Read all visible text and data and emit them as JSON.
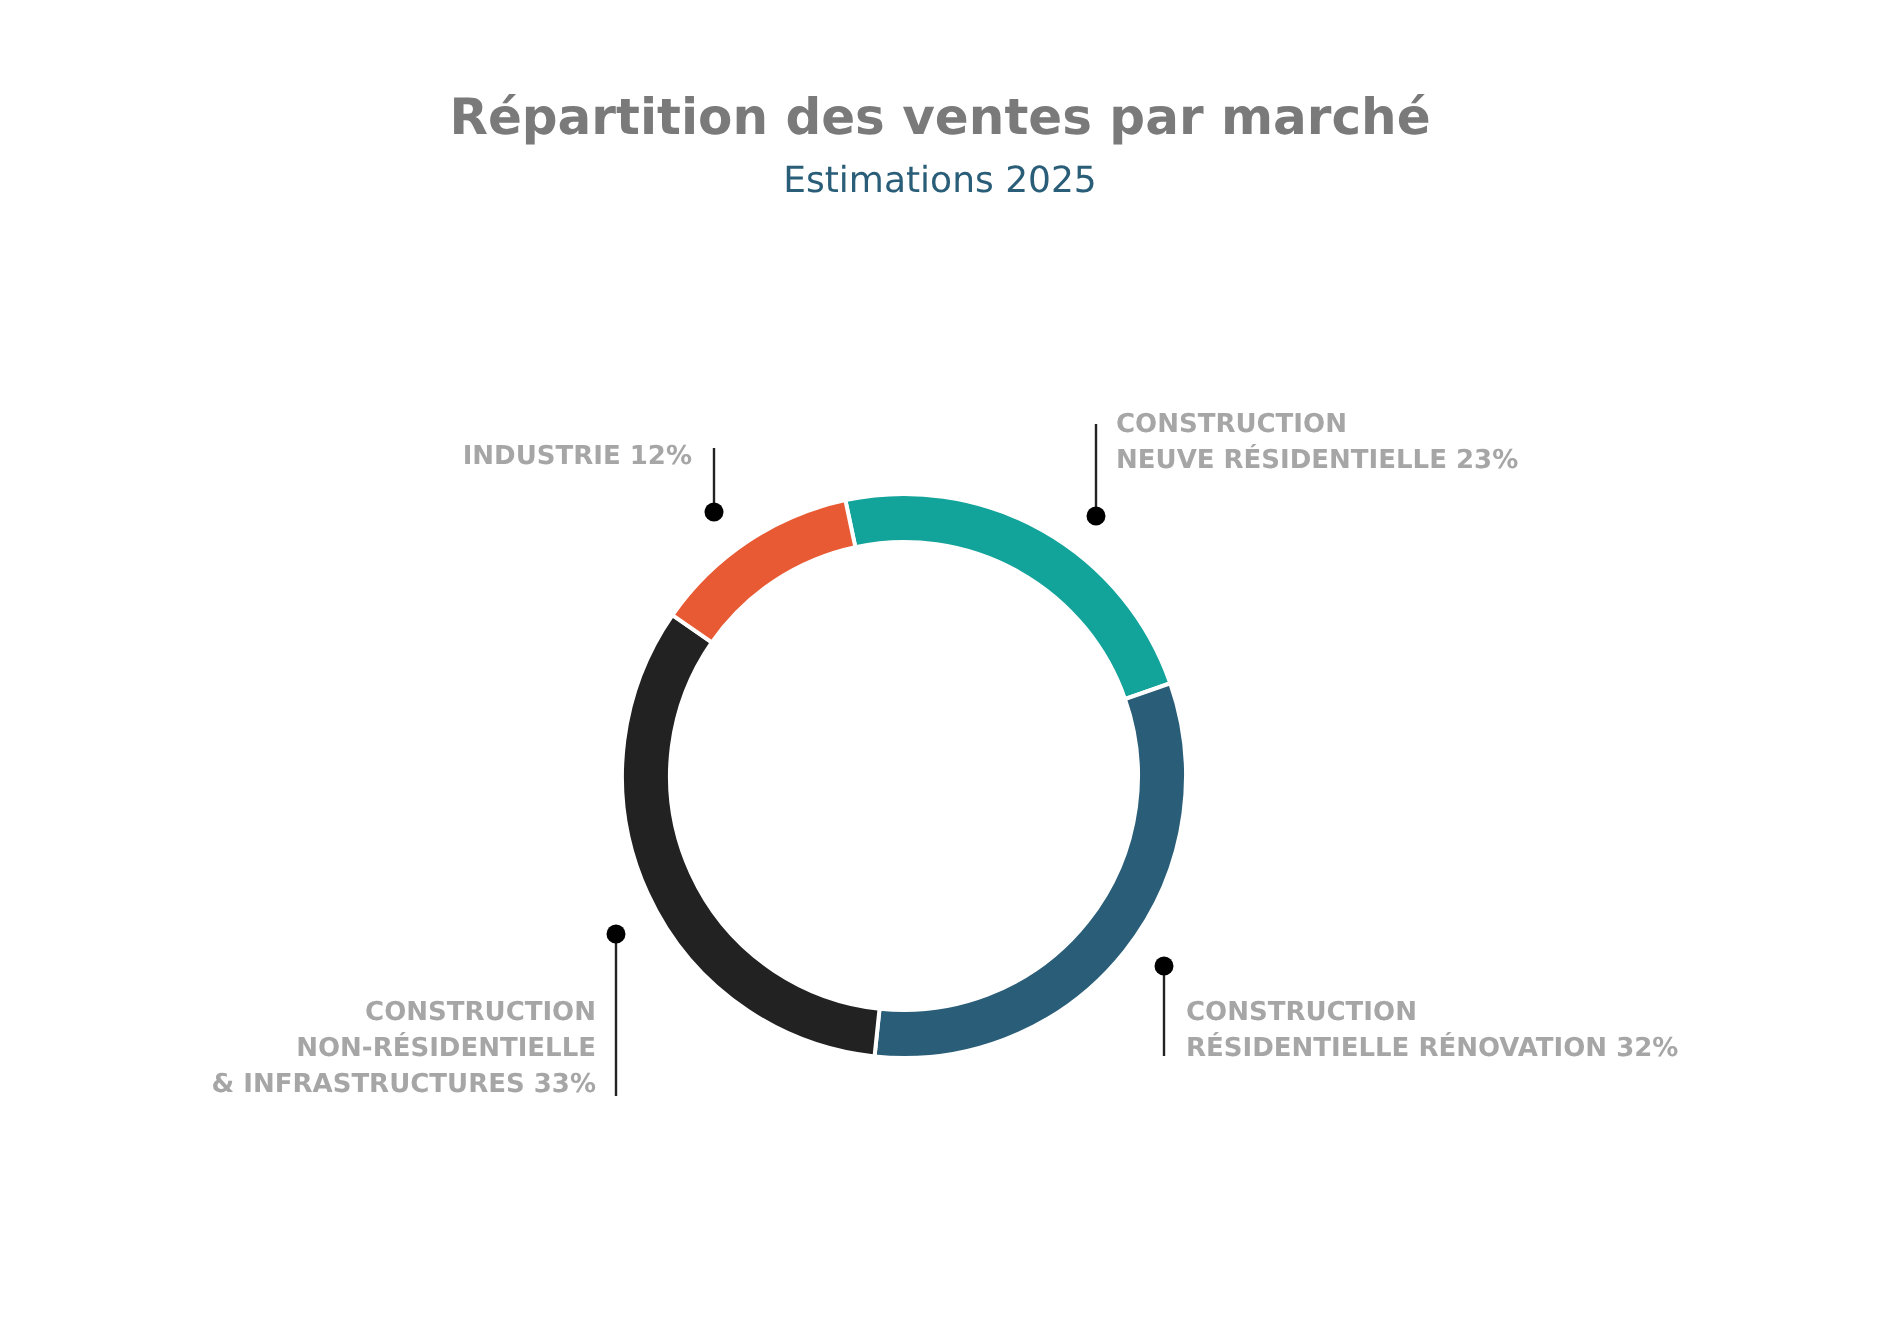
{
  "chart_data": {
    "type": "donut",
    "title": "Répartition des ventes par marché",
    "subtitle": "Estimations 2025",
    "categories": [
      "CONSTRUCTION\nNEUVE RÉSIDENTIELLE",
      "CONSTRUCTION\nRÉSIDENTIELLE RÉNOVATION",
      "CONSTRUCTION\nNON-RÉSIDENTIELLE\n& INFRASTRUCTURES",
      "INDUSTRIE"
    ],
    "values": [
      23,
      32,
      33,
      12
    ],
    "colors": [
      "#12a39a",
      "#2a5e78",
      "#222222",
      "#e85a33"
    ],
    "value_labels": [
      "23%",
      "32%",
      "33%",
      "12%"
    ]
  }
}
